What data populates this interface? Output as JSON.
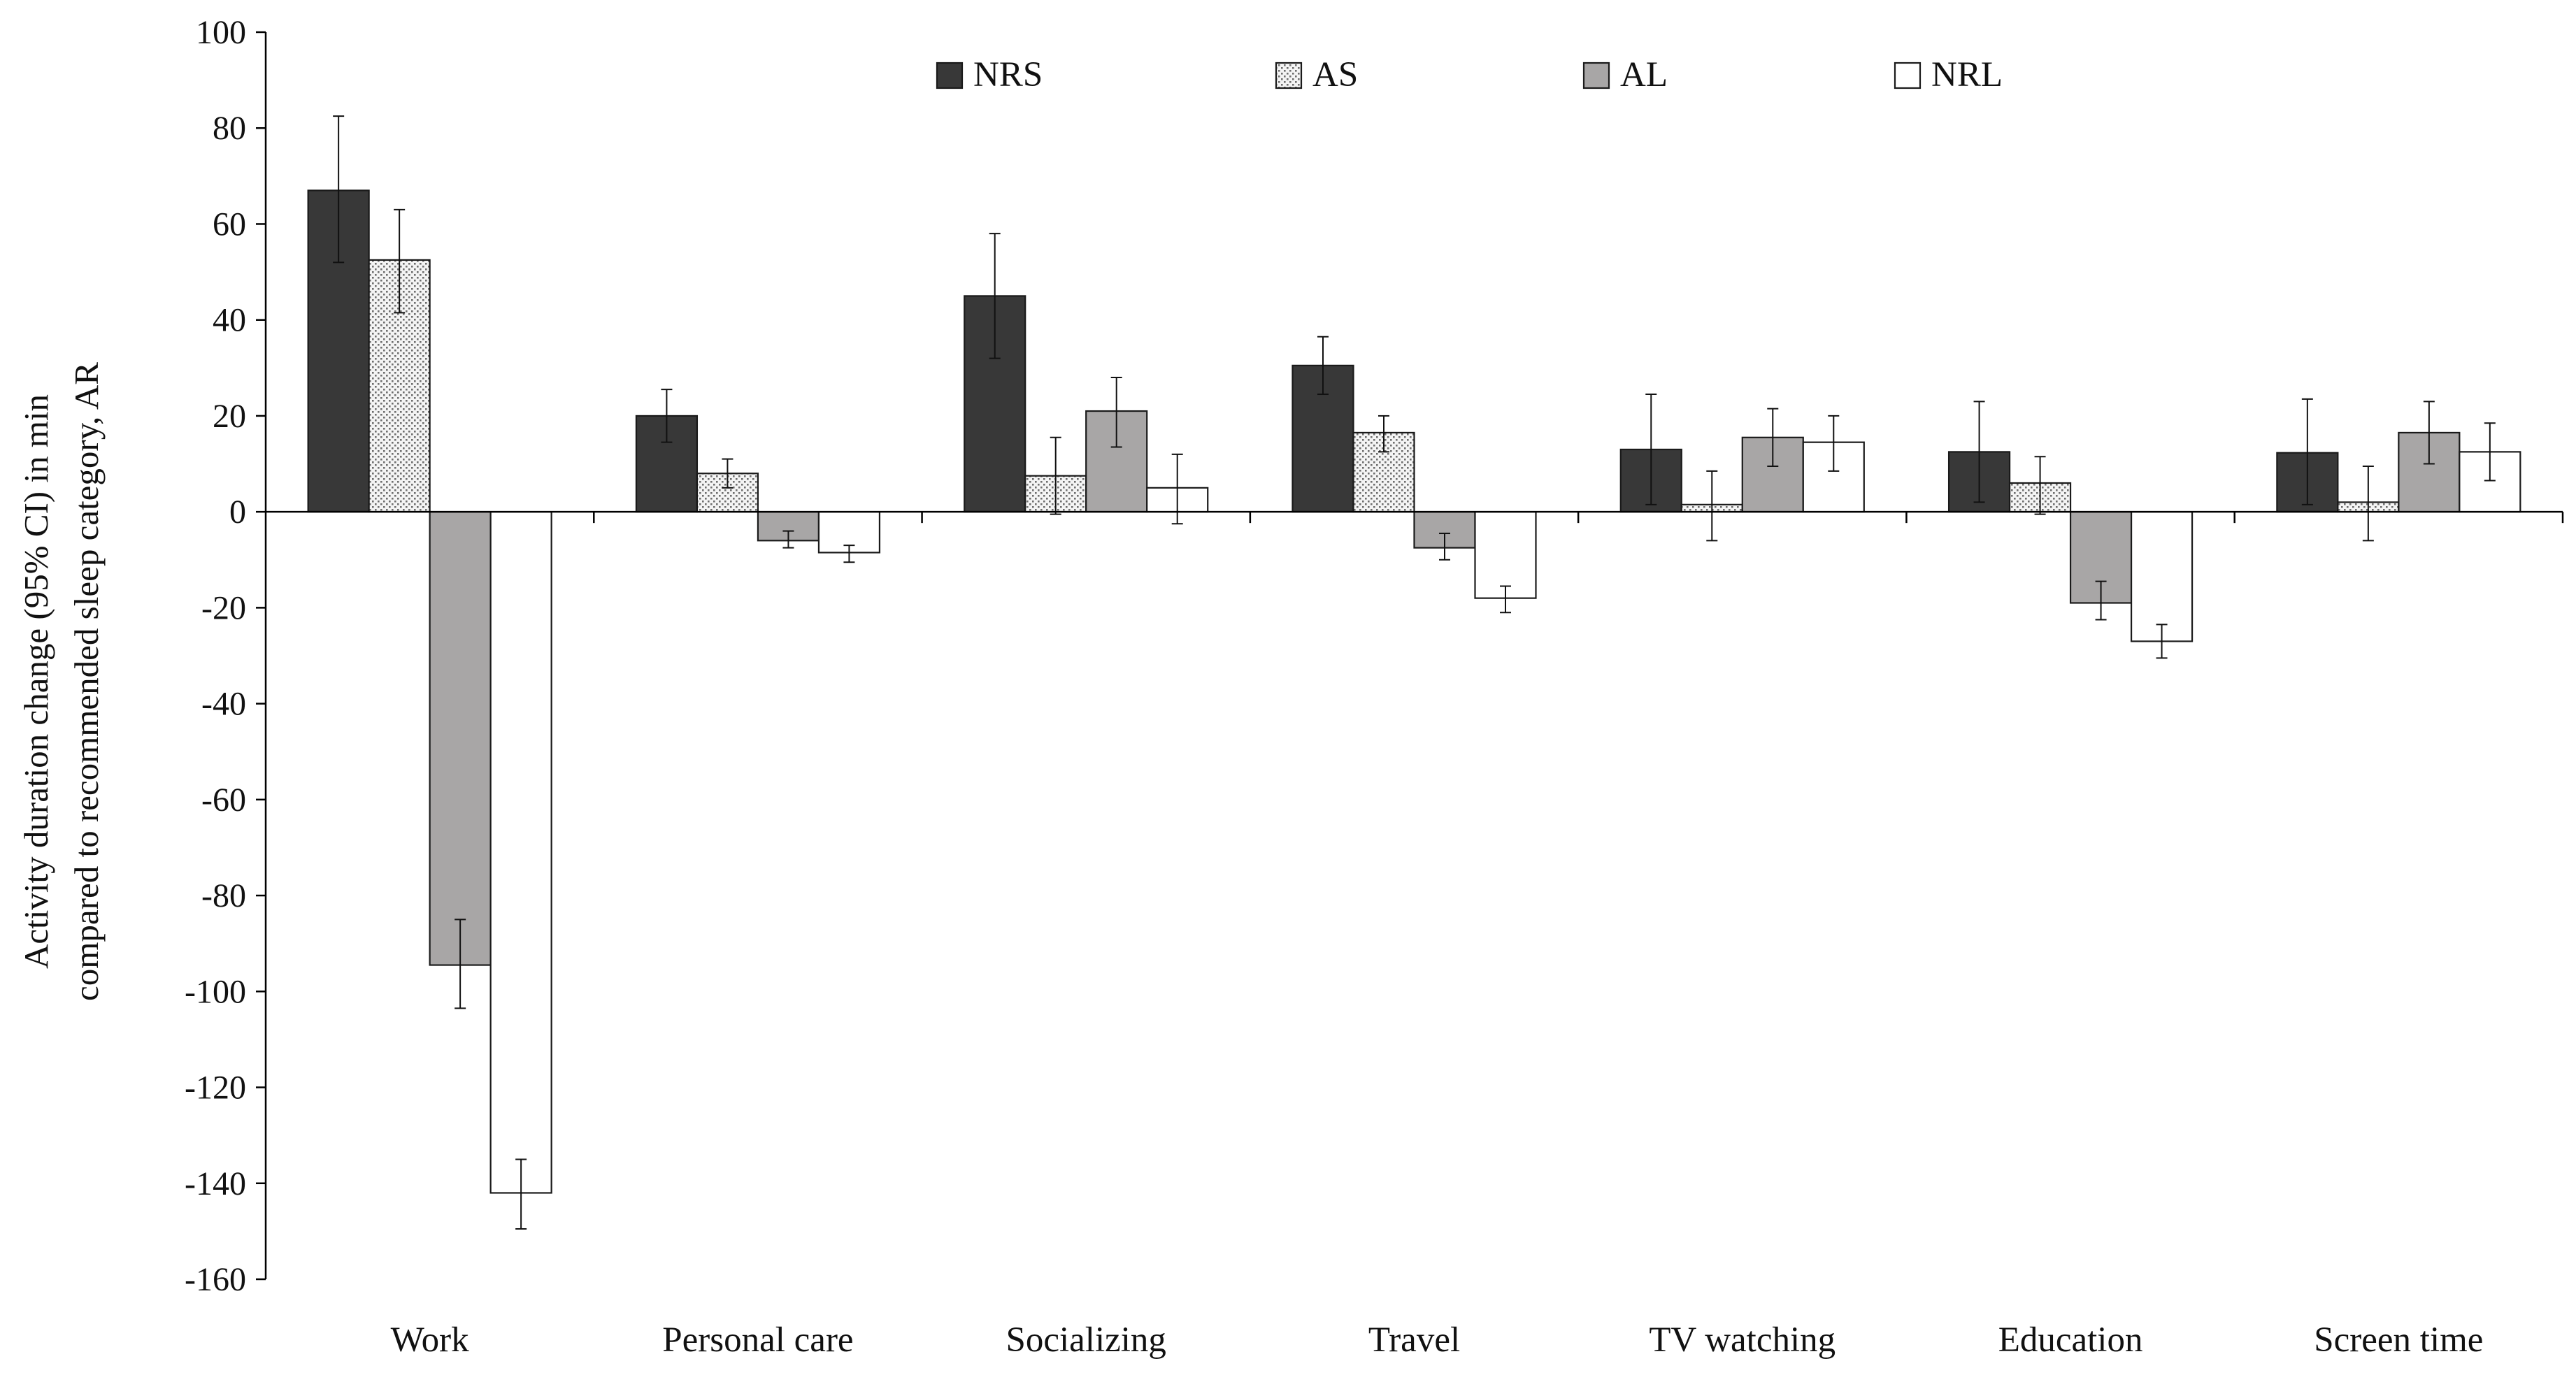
{
  "chart_data": {
    "type": "bar",
    "title": "",
    "xlabel": "",
    "ylabel_lines": [
      "Activity duration change (95% CI) in min",
      "compared to recommended sleep category, AR"
    ],
    "ylim": [
      -160,
      100
    ],
    "yticks": [
      100,
      80,
      60,
      40,
      20,
      0,
      -20,
      -40,
      -60,
      -80,
      -100,
      -120,
      -140,
      -160
    ],
    "grid": false,
    "legend_position": "top-center",
    "categories": [
      "Work",
      "Personal care",
      "Socializing",
      "Travel",
      "TV watching",
      "Education",
      "Screen time"
    ],
    "series": [
      {
        "name": "NRS",
        "fill": "#383838",
        "pattern": "solid",
        "values": [
          67,
          20,
          45,
          30.5,
          13,
          12.5,
          12.3
        ],
        "ci_low": [
          52,
          14.5,
          32,
          24.5,
          1.5,
          2,
          1.5
        ],
        "ci_high": [
          82.5,
          25.5,
          58,
          36.5,
          24.5,
          23,
          23.5
        ]
      },
      {
        "name": "AS",
        "fill": "#e4e4e4",
        "pattern": "dotted",
        "values": [
          52.5,
          8,
          7.5,
          16.5,
          1.5,
          6,
          2
        ],
        "ci_low": [
          41.5,
          5,
          -0.5,
          12.5,
          -6,
          -0.5,
          -6
        ],
        "ci_high": [
          63,
          11,
          15.5,
          20,
          8.5,
          11.5,
          9.5
        ]
      },
      {
        "name": "AL",
        "fill": "#a8a6a6",
        "pattern": "solid",
        "values": [
          -94.5,
          -6,
          21,
          -7.5,
          15.5,
          -19,
          16.5
        ],
        "ci_low": [
          -103.5,
          -7.5,
          13.5,
          -10,
          9.5,
          -22.5,
          10
        ],
        "ci_high": [
          -85,
          -4,
          28,
          -4.5,
          21.5,
          -14.5,
          23
        ]
      },
      {
        "name": "NRL",
        "fill": "#ffffff",
        "pattern": "solid",
        "values": [
          -142,
          -8.5,
          5,
          -18,
          14.5,
          -27,
          12.5
        ],
        "ci_low": [
          -149.5,
          -10.5,
          -2.5,
          -21,
          8.5,
          -30.5,
          6.5
        ],
        "ci_high": [
          -135,
          -7,
          12,
          -15.5,
          20,
          -23.5,
          18.5
        ]
      }
    ]
  }
}
